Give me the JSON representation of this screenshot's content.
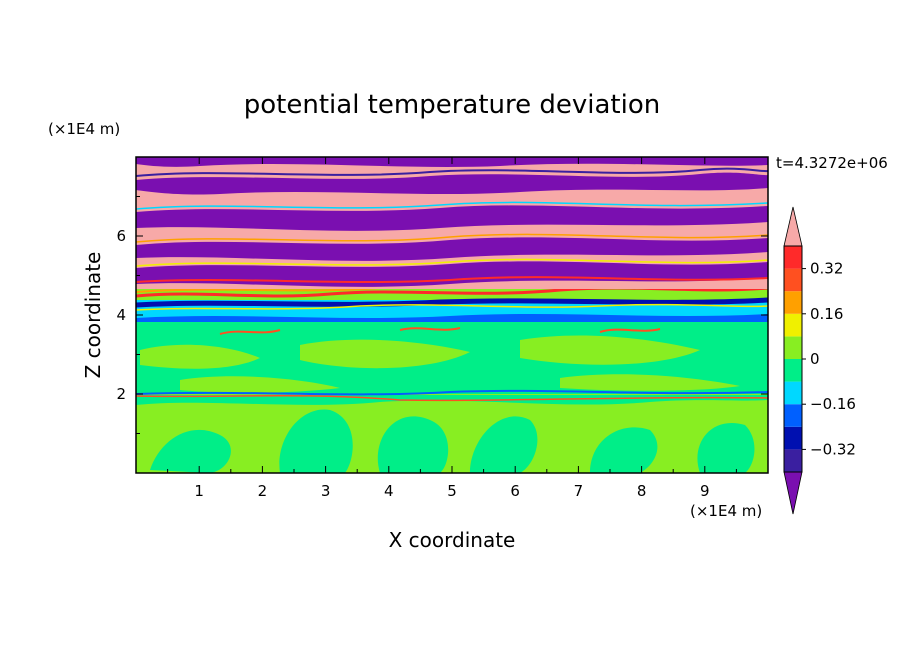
{
  "chart_data": {
    "type": "heatmap",
    "title": "potential temperature deviation",
    "xlabel": "X coordinate",
    "ylabel": "Z coordinate",
    "x_unit": "(×1E4 m)",
    "y_unit": "(×1E4 m)",
    "time_label": "t=4.3272e+06",
    "xlim": [
      0,
      10
    ],
    "ylim": [
      0,
      8
    ],
    "x_ticks": [
      1,
      2,
      3,
      4,
      5,
      6,
      7,
      8,
      9
    ],
    "y_ticks": [
      2,
      4,
      6
    ],
    "colorbar": {
      "levels": [
        -0.4,
        -0.32,
        -0.24,
        -0.16,
        -0.08,
        0,
        0.08,
        0.16,
        0.24,
        0.32,
        0.4
      ],
      "tick_labels": [
        "0.32",
        "0.16",
        "0",
        "−0.16",
        "−0.32"
      ],
      "tick_values": [
        0.32,
        0.16,
        0,
        -0.16,
        -0.32
      ],
      "colors": [
        "#7a0fb0",
        "#3a1fa0",
        "#0010b0",
        "#0060ff",
        "#00d8ff",
        "#00ee88",
        "#88ee22",
        "#f0f000",
        "#ffa000",
        "#ff5020",
        "#ff2a2a",
        "#f7a9a8"
      ],
      "extend": "both"
    }
  }
}
